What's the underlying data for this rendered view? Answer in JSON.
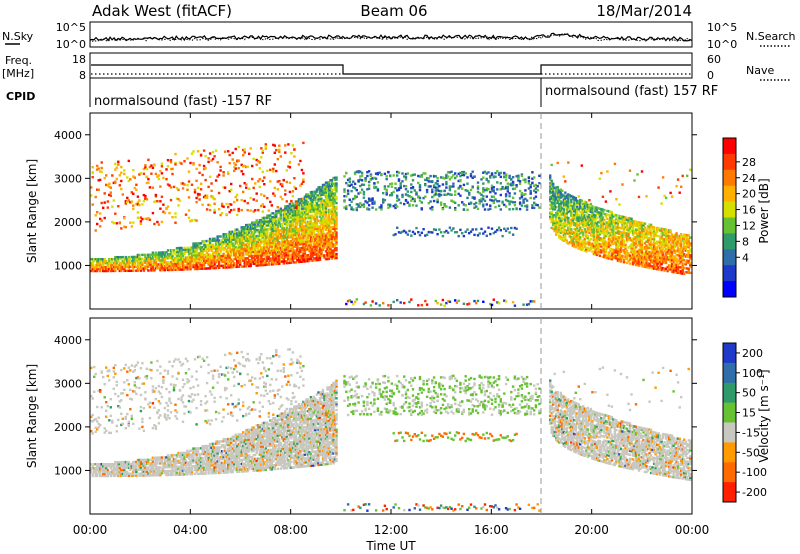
{
  "header": {
    "title_left": "Adak West (fitACF)",
    "title_center": "Beam 06",
    "title_right": "18/Mar/2014"
  },
  "noise_panel": {
    "left_label": "N.Sky",
    "right_label": "N.Search",
    "y_ticks_left": [
      "10^5",
      "10^0"
    ],
    "y_ticks_right": [
      "10^5",
      "10^0"
    ]
  },
  "freq_panel": {
    "left_label_top": "Freq.",
    "left_label_bottom": "[MHz]",
    "y_ticks_left": [
      "18",
      "8"
    ],
    "y_ticks_right": [
      "60",
      "0"
    ],
    "right_label": "Nave",
    "cpid_label": "CPID",
    "cpid_text_1": "normalsound (fast) -157 RF",
    "cpid_text_2": "normalsound (fast) 157 RF"
  },
  "chart_data": [
    {
      "type": "heatmap",
      "name": "power",
      "ylabel": "Slant Range [km]",
      "ylim": [
        0,
        4500
      ],
      "yticks": [
        1000,
        2000,
        3000,
        4000
      ],
      "xlim": [
        0,
        24
      ],
      "colorbar": {
        "label": "Power [dB]",
        "ticks": [
          "28",
          "24",
          "20",
          "16",
          "12",
          "8",
          "4"
        ],
        "colors": [
          "#ff0000",
          "#ff3a00",
          "#ff7a00",
          "#ffb000",
          "#d6e000",
          "#66c233",
          "#2f9a6a",
          "#2f6ea8",
          "#1f3ac8",
          "#0000ff"
        ]
      }
    },
    {
      "type": "heatmap",
      "name": "velocity",
      "ylabel": "Slant Range [km]",
      "ylim": [
        0,
        4500
      ],
      "yticks": [
        1000,
        2000,
        3000,
        4000
      ],
      "xlim": [
        0,
        24
      ],
      "colorbar": {
        "label": "Velocity [m s⁻¹]",
        "ticks": [
          "200",
          "100",
          "50",
          "15",
          "-15",
          "-50",
          "-100",
          "-200"
        ],
        "colors": [
          "#1f3ac8",
          "#2f6ea8",
          "#2f9a6a",
          "#66c233",
          "#c8c8c0",
          "#ff9a00",
          "#ff6a00",
          "#ff2000"
        ]
      }
    }
  ],
  "xaxis": {
    "label": "Time UT",
    "ticks": [
      "00:00",
      "04:00",
      "08:00",
      "12:00",
      "16:00",
      "20:00",
      "00:00"
    ],
    "tick_hours": [
      0,
      4,
      8,
      12,
      16,
      20,
      24
    ]
  }
}
